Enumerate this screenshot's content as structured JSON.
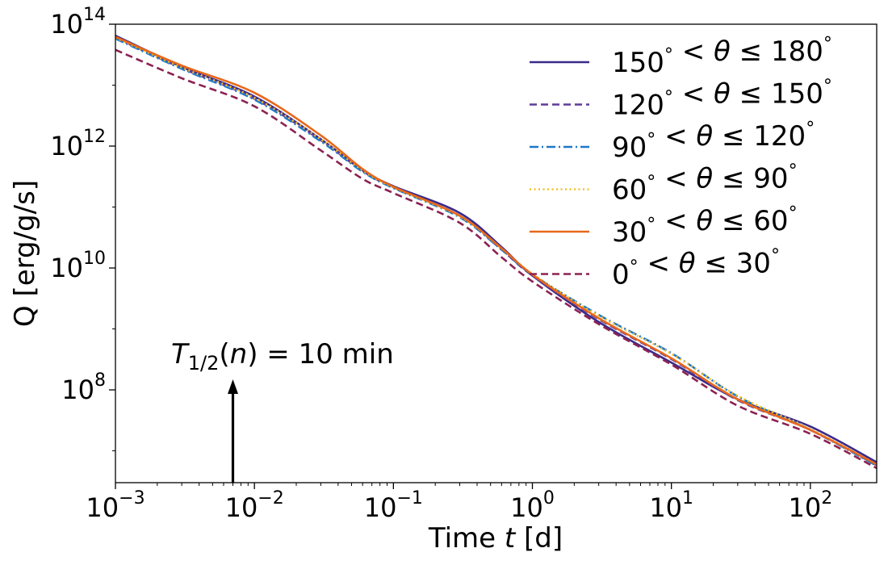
{
  "chart_data": {
    "type": "line",
    "xscale": "log",
    "yscale": "log",
    "xlim": [
      0.001,
      300
    ],
    "ylim": [
      3000000,
      100000000000000
    ],
    "xlabel": {
      "prefix": "Time ",
      "var": "t",
      "suffix": " [d]"
    },
    "ylabel": "Q [erg/g/s]",
    "x_ticks": [
      {
        "base": "10",
        "exp": "−3",
        "value": 0.001
      },
      {
        "base": "10",
        "exp": "−2",
        "value": 0.01
      },
      {
        "base": "10",
        "exp": "−1",
        "value": 0.1
      },
      {
        "base": "10",
        "exp": "0",
        "value": 1
      },
      {
        "base": "10",
        "exp": "1",
        "value": 10
      },
      {
        "base": "10",
        "exp": "2",
        "value": 100
      }
    ],
    "y_ticks": [
      {
        "base": "10",
        "exp": "8",
        "value": 100000000
      },
      {
        "base": "10",
        "exp": "10",
        "value": 10000000000
      },
      {
        "base": "10",
        "exp": "12",
        "value": 1000000000000
      },
      {
        "base": "10",
        "exp": "14",
        "value": 100000000000000
      }
    ],
    "legend_position": "top-right",
    "series": [
      {
        "name": "150° < θ ≤ 180°",
        "lo": "150",
        "hi": "180",
        "color": "#3b2a8a",
        "style": "solid",
        "x": [
          0.001,
          0.003,
          0.01,
          0.03,
          0.06,
          0.1,
          0.3,
          0.6,
          1,
          3,
          10,
          30,
          100,
          300
        ],
        "y": [
          65000000000000,
          20000000000000,
          6500000000000,
          1300000000000,
          400000000000,
          220000000000,
          80000000000,
          22000000000,
          7500000000,
          1300000000,
          280000000,
          70000000,
          25000000,
          6500000
        ]
      },
      {
        "name": "120° < θ ≤ 150°",
        "lo": "120",
        "hi": "150",
        "color": "#5e3c99",
        "style": "dashed",
        "x": [
          0.001,
          0.003,
          0.01,
          0.03,
          0.06,
          0.1,
          0.3,
          0.6,
          1,
          3,
          10,
          30,
          100,
          300
        ],
        "y": [
          60000000000000,
          19000000000000,
          6000000000000,
          1250000000000,
          390000000000,
          210000000000,
          72000000000,
          20000000000,
          7500000000,
          1450000000,
          320000000,
          68000000,
          22000000,
          5800000
        ]
      },
      {
        "name": "90° < θ ≤ 120°",
        "lo": "90",
        "hi": "120",
        "color": "#1f78c8",
        "style": "dashdot",
        "x": [
          0.001,
          0.003,
          0.01,
          0.03,
          0.06,
          0.1,
          0.3,
          0.6,
          1,
          3,
          10,
          30,
          100,
          300
        ],
        "y": [
          58000000000000,
          18500000000000,
          5800000000000,
          1200000000000,
          380000000000,
          205000000000,
          68000000000,
          20000000000,
          7800000000,
          1700000000,
          400000000,
          78000000,
          22000000,
          5700000
        ]
      },
      {
        "name": "60° < θ ≤ 90°",
        "lo": "60",
        "hi": "90",
        "color": "#f2c12e",
        "style": "dotted",
        "x": [
          0.001,
          0.003,
          0.01,
          0.03,
          0.06,
          0.1,
          0.3,
          0.6,
          1,
          3,
          10,
          30,
          100,
          300
        ],
        "y": [
          60000000000000,
          19500000000000,
          6200000000000,
          1300000000000,
          400000000000,
          210000000000,
          70000000000,
          21000000000,
          8000000000,
          1650000000,
          390000000,
          80000000,
          23000000,
          6000000
        ]
      },
      {
        "name": "30° < θ ≤ 60°",
        "lo": "30",
        "hi": "60",
        "color": "#e8681a",
        "style": "solid",
        "x": [
          0.001,
          0.003,
          0.01,
          0.03,
          0.06,
          0.1,
          0.3,
          0.6,
          1,
          3,
          10,
          30,
          100,
          300
        ],
        "y": [
          62000000000000,
          21000000000000,
          7500000000000,
          1500000000000,
          420000000000,
          215000000000,
          72000000000,
          21000000000,
          7800000000,
          1500000000,
          330000000,
          70000000,
          22000000,
          6000000
        ]
      },
      {
        "name": "0° < θ ≤ 30°",
        "lo": "0",
        "hi": "30",
        "color": "#8b2252",
        "style": "dashed",
        "x": [
          0.001,
          0.003,
          0.01,
          0.03,
          0.06,
          0.1,
          0.3,
          0.6,
          1,
          3,
          10,
          30,
          100,
          300
        ],
        "y": [
          38000000000000,
          13000000000000,
          4500000000000,
          850000000000,
          290000000000,
          170000000000,
          55000000000,
          15000000000,
          6000000000,
          1200000000,
          260000000,
          55000000,
          19000000,
          5200000
        ]
      }
    ],
    "annotation": {
      "prefix": "T",
      "sub": "1/2",
      "middle": "(",
      "var": "n",
      "suffix": ") = 10 min",
      "arrow_x": 0.007
    }
  }
}
